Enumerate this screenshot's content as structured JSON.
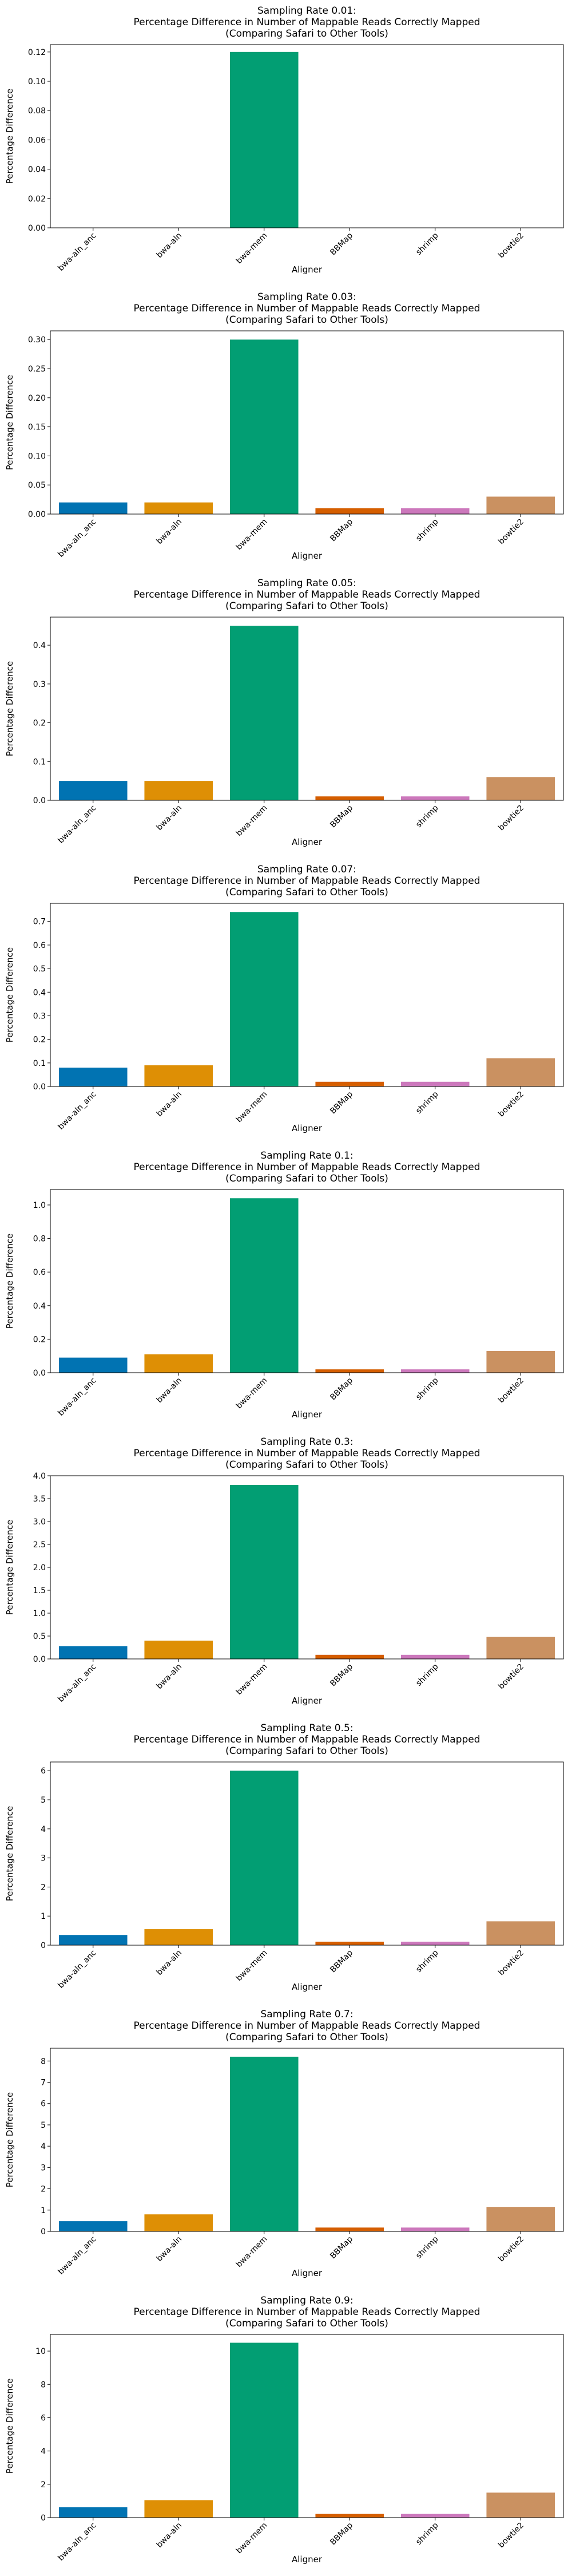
{
  "chart_data": [
    {
      "type": "bar",
      "title": [
        "Sampling Rate 0.01:",
        "Percentage Difference in Number of Mappable Reads Correctly Mapped",
        "(Comparing Safari to Other Tools)"
      ],
      "xlabel": "Aligner",
      "ylabel": "Percentage Difference",
      "categories": [
        "bwa-aln_anc",
        "bwa-aln",
        "bwa-mem",
        "BBMap",
        "shrimp",
        "bowtie2"
      ],
      "values": [
        0.0,
        0.0,
        0.12,
        0.0,
        0.0,
        0.0
      ],
      "ylim": [
        0,
        0.125
      ],
      "yticks": [
        0.0,
        0.02,
        0.04,
        0.06,
        0.08,
        0.1,
        0.12
      ],
      "ytick_labels": [
        "0.00",
        "0.02",
        "0.04",
        "0.06",
        "0.08",
        "0.10",
        "0.12"
      ]
    },
    {
      "type": "bar",
      "title": [
        "Sampling Rate 0.03:",
        "Percentage Difference in Number of Mappable Reads Correctly Mapped",
        "(Comparing Safari to Other Tools)"
      ],
      "xlabel": "Aligner",
      "ylabel": "Percentage Difference",
      "categories": [
        "bwa-aln_anc",
        "bwa-aln",
        "bwa-mem",
        "BBMap",
        "shrimp",
        "bowtie2"
      ],
      "values": [
        0.02,
        0.02,
        0.3,
        0.01,
        0.01,
        0.03
      ],
      "ylim": [
        0,
        0.315
      ],
      "yticks": [
        0.0,
        0.05,
        0.1,
        0.15,
        0.2,
        0.25,
        0.3
      ],
      "ytick_labels": [
        "0.00",
        "0.05",
        "0.10",
        "0.15",
        "0.20",
        "0.25",
        "0.30"
      ]
    },
    {
      "type": "bar",
      "title": [
        "Sampling Rate 0.05:",
        "Percentage Difference in Number of Mappable Reads Correctly Mapped",
        "(Comparing Safari to Other Tools)"
      ],
      "xlabel": "Aligner",
      "ylabel": "Percentage Difference",
      "categories": [
        "bwa-aln_anc",
        "bwa-aln",
        "bwa-mem",
        "BBMap",
        "shrimp",
        "bowtie2"
      ],
      "values": [
        0.05,
        0.05,
        0.45,
        0.01,
        0.01,
        0.06
      ],
      "ylim": [
        0,
        0.4725
      ],
      "yticks": [
        0.0,
        0.1,
        0.2,
        0.3,
        0.4
      ],
      "ytick_labels": [
        "0.0",
        "0.1",
        "0.2",
        "0.3",
        "0.4"
      ]
    },
    {
      "type": "bar",
      "title": [
        "Sampling Rate 0.07:",
        "Percentage Difference in Number of Mappable Reads Correctly Mapped",
        "(Comparing Safari to Other Tools)"
      ],
      "xlabel": "Aligner",
      "ylabel": "Percentage Difference",
      "categories": [
        "bwa-aln_anc",
        "bwa-aln",
        "bwa-mem",
        "BBMap",
        "shrimp",
        "bowtie2"
      ],
      "values": [
        0.08,
        0.09,
        0.74,
        0.02,
        0.02,
        0.12
      ],
      "ylim": [
        0,
        0.777
      ],
      "yticks": [
        0.0,
        0.1,
        0.2,
        0.3,
        0.4,
        0.5,
        0.6,
        0.7
      ],
      "ytick_labels": [
        "0.0",
        "0.1",
        "0.2",
        "0.3",
        "0.4",
        "0.5",
        "0.6",
        "0.7"
      ]
    },
    {
      "type": "bar",
      "title": [
        "Sampling Rate 0.1:",
        "Percentage Difference in Number of Mappable Reads Correctly Mapped",
        "(Comparing Safari to Other Tools)"
      ],
      "xlabel": "Aligner",
      "ylabel": "Percentage Difference",
      "categories": [
        "bwa-aln_anc",
        "bwa-aln",
        "bwa-mem",
        "BBMap",
        "shrimp",
        "bowtie2"
      ],
      "values": [
        0.09,
        0.11,
        1.04,
        0.02,
        0.02,
        0.13
      ],
      "ylim": [
        0,
        1.092
      ],
      "yticks": [
        0.0,
        0.2,
        0.4,
        0.6,
        0.8,
        1.0
      ],
      "ytick_labels": [
        "0.0",
        "0.2",
        "0.4",
        "0.6",
        "0.8",
        "1.0"
      ]
    },
    {
      "type": "bar",
      "title": [
        "Sampling Rate 0.3:",
        "Percentage Difference in Number of Mappable Reads Correctly Mapped",
        "(Comparing Safari to Other Tools)"
      ],
      "xlabel": "Aligner",
      "ylabel": "Percentage Difference",
      "categories": [
        "bwa-aln_anc",
        "bwa-aln",
        "bwa-mem",
        "BBMap",
        "shrimp",
        "bowtie2"
      ],
      "values": [
        0.28,
        0.4,
        3.8,
        0.09,
        0.09,
        0.48
      ],
      "ylim": [
        0,
        4.0
      ],
      "yticks": [
        0.0,
        0.5,
        1.0,
        1.5,
        2.0,
        2.5,
        3.0,
        3.5,
        4.0
      ],
      "ytick_labels": [
        "0.0",
        "0.5",
        "1.0",
        "1.5",
        "2.0",
        "2.5",
        "3.0",
        "3.5",
        "4.0"
      ]
    },
    {
      "type": "bar",
      "title": [
        "Sampling Rate 0.5:",
        "Percentage Difference in Number of Mappable Reads Correctly Mapped",
        "(Comparing Safari to Other Tools)"
      ],
      "xlabel": "Aligner",
      "ylabel": "Percentage Difference",
      "categories": [
        "bwa-aln_anc",
        "bwa-aln",
        "bwa-mem",
        "BBMap",
        "shrimp",
        "bowtie2"
      ],
      "values": [
        0.35,
        0.55,
        6.0,
        0.12,
        0.12,
        0.82
      ],
      "ylim": [
        0,
        6.3
      ],
      "yticks": [
        0,
        1,
        2,
        3,
        4,
        5,
        6
      ],
      "ytick_labels": [
        "0",
        "1",
        "2",
        "3",
        "4",
        "5",
        "6"
      ]
    },
    {
      "type": "bar",
      "title": [
        "Sampling Rate 0.7:",
        "Percentage Difference in Number of Mappable Reads Correctly Mapped",
        "(Comparing Safari to Other Tools)"
      ],
      "xlabel": "Aligner",
      "ylabel": "Percentage Difference",
      "categories": [
        "bwa-aln_anc",
        "bwa-aln",
        "bwa-mem",
        "BBMap",
        "shrimp",
        "bowtie2"
      ],
      "values": [
        0.48,
        0.8,
        8.2,
        0.18,
        0.18,
        1.15
      ],
      "ylim": [
        0,
        8.6
      ],
      "yticks": [
        0,
        1,
        2,
        3,
        4,
        5,
        6,
        7,
        8
      ],
      "ytick_labels": [
        "0",
        "1",
        "2",
        "3",
        "4",
        "5",
        "6",
        "7",
        "8"
      ]
    },
    {
      "type": "bar",
      "title": [
        "Sampling Rate 0.9:",
        "Percentage Difference in Number of Mappable Reads Correctly Mapped",
        "(Comparing Safari to Other Tools)"
      ],
      "xlabel": "Aligner",
      "ylabel": "Percentage Difference",
      "categories": [
        "bwa-aln_anc",
        "bwa-aln",
        "bwa-mem",
        "BBMap",
        "shrimp",
        "bowtie2"
      ],
      "values": [
        0.62,
        1.05,
        10.5,
        0.22,
        0.22,
        1.5
      ],
      "ylim": [
        0,
        11.0
      ],
      "yticks": [
        0,
        2,
        4,
        6,
        8,
        10
      ],
      "ytick_labels": [
        "0",
        "2",
        "4",
        "6",
        "8",
        "10"
      ]
    }
  ],
  "palette": [
    "#0173b2",
    "#de8f05",
    "#029e73",
    "#d55e00",
    "#cc78bc",
    "#ca9161"
  ]
}
